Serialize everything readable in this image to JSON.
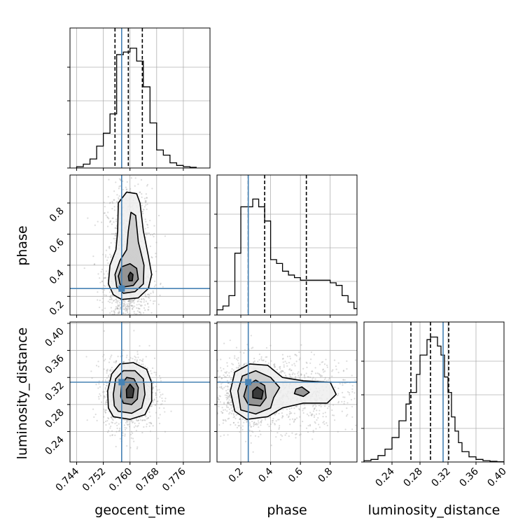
{
  "chart_data": {
    "type": "corner",
    "parameters": [
      "geocent_time",
      "phase",
      "luminosity_distance"
    ],
    "truths": {
      "geocent_time": 0.7575,
      "phase": 0.25,
      "luminosity_distance": 0.313
    },
    "truth_color": "#4682b4",
    "grid": true,
    "histograms": [
      {
        "parameter": "geocent_time",
        "range": [
          0.742,
          0.784
        ],
        "bins": [
          0.744,
          0.746,
          0.748,
          0.75,
          0.752,
          0.754,
          0.756,
          0.758,
          0.76,
          0.762,
          0.764,
          0.766,
          0.768,
          0.77,
          0.772,
          0.774,
          0.776,
          0.778,
          0.78
        ],
        "counts": [
          0.01,
          0.03,
          0.07,
          0.17,
          0.27,
          0.42,
          0.88,
          0.9,
          0.93,
          0.83,
          0.63,
          0.35,
          0.14,
          0.1,
          0.04,
          0.02,
          0.01,
          0.005
        ],
        "quantiles": [
          0.7555,
          0.7595,
          0.7637
        ]
      },
      {
        "parameter": "phase",
        "range": [
          0.04,
          0.98
        ],
        "bins": [
          0.04,
          0.08,
          0.12,
          0.16,
          0.2,
          0.24,
          0.28,
          0.32,
          0.36,
          0.4,
          0.44,
          0.48,
          0.52,
          0.56,
          0.6,
          0.64,
          0.68,
          0.72,
          0.76,
          0.8,
          0.84,
          0.88,
          0.92,
          0.96,
          0.98
        ],
        "counts": [
          0.04,
          0.07,
          0.15,
          0.48,
          0.84,
          0.84,
          0.9,
          0.84,
          0.73,
          0.43,
          0.4,
          0.34,
          0.31,
          0.29,
          0.27,
          0.27,
          0.27,
          0.27,
          0.27,
          0.25,
          0.23,
          0.15,
          0.1,
          0.05
        ],
        "quantiles": [
          0.25,
          0.36,
          0.64
        ]
      },
      {
        "parameter": "luminosity_distance",
        "range": [
          0.2,
          0.4
        ],
        "bins": [
          0.2,
          0.21,
          0.22,
          0.23,
          0.24,
          0.25,
          0.26,
          0.265,
          0.27,
          0.275,
          0.28,
          0.285,
          0.29,
          0.295,
          0.3,
          0.305,
          0.31,
          0.315,
          0.32,
          0.325,
          0.33,
          0.335,
          0.34,
          0.35,
          0.36,
          0.37,
          0.38,
          0.39,
          0.4
        ],
        "counts": [
          0.01,
          0.02,
          0.05,
          0.1,
          0.19,
          0.32,
          0.45,
          0.54,
          0.54,
          0.68,
          0.83,
          0.83,
          0.95,
          0.97,
          0.97,
          0.9,
          0.83,
          0.66,
          0.54,
          0.35,
          0.24,
          0.15,
          0.08,
          0.04,
          0.02,
          0.01,
          0.005,
          0.002
        ],
        "quantiles": [
          0.267,
          0.295,
          0.321
        ]
      }
    ],
    "contours": [
      {
        "x": "geocent_time",
        "y": "phase",
        "xlim": [
          0.742,
          0.784
        ],
        "ylim": [
          0.08,
          0.98
        ],
        "center": [
          0.7595,
          0.33
        ],
        "levels": [
          [
            [
              0.7575,
              0.18
            ],
            [
              0.7625,
              0.19
            ],
            [
              0.7655,
              0.25
            ],
            [
              0.7665,
              0.34
            ],
            [
              0.7655,
              0.46
            ],
            [
              0.764,
              0.62
            ],
            [
              0.763,
              0.8
            ],
            [
              0.762,
              0.86
            ],
            [
              0.759,
              0.87
            ],
            [
              0.7565,
              0.8
            ],
            [
              0.7563,
              0.62
            ],
            [
              0.7558,
              0.5
            ],
            [
              0.754,
              0.4
            ],
            [
              0.7535,
              0.28
            ],
            [
              0.755,
              0.21
            ]
          ],
          [
            [
              0.758,
              0.22
            ],
            [
              0.7615,
              0.23
            ],
            [
              0.764,
              0.28
            ],
            [
              0.7642,
              0.4
            ],
            [
              0.7625,
              0.55
            ],
            [
              0.7617,
              0.72
            ],
            [
              0.7603,
              0.74
            ],
            [
              0.7595,
              0.62
            ],
            [
              0.759,
              0.5
            ],
            [
              0.757,
              0.43
            ],
            [
              0.7555,
              0.34
            ],
            [
              0.756,
              0.26
            ]
          ],
          [
            [
              0.758,
              0.26
            ],
            [
              0.761,
              0.27
            ],
            [
              0.7625,
              0.31
            ],
            [
              0.762,
              0.38
            ],
            [
              0.76,
              0.41
            ],
            [
              0.7575,
              0.39
            ],
            [
              0.7565,
              0.33
            ],
            [
              0.757,
              0.28
            ]
          ],
          [
            [
              0.7597,
              0.3
            ],
            [
              0.7607,
              0.3
            ],
            [
              0.7609,
              0.34
            ],
            [
              0.7601,
              0.355
            ],
            [
              0.7595,
              0.33
            ]
          ]
        ],
        "points": 1400,
        "spread": [
          0.0035,
          0.17
        ]
      },
      {
        "x": "geocent_time",
        "y": "luminosity_distance",
        "xlim": [
          0.742,
          0.784
        ],
        "ylim": [
          0.195,
          0.402
        ],
        "center": [
          0.7598,
          0.296
        ],
        "levels": [
          [
            [
              0.755,
              0.262
            ],
            [
              0.76,
              0.258
            ],
            [
              0.7645,
              0.265
            ],
            [
              0.7665,
              0.285
            ],
            [
              0.7665,
              0.312
            ],
            [
              0.765,
              0.332
            ],
            [
              0.761,
              0.342
            ],
            [
              0.757,
              0.34
            ],
            [
              0.7545,
              0.325
            ],
            [
              0.7533,
              0.3
            ],
            [
              0.7535,
              0.275
            ]
          ],
          [
            [
              0.7565,
              0.27
            ],
            [
              0.7605,
              0.267
            ],
            [
              0.7635,
              0.275
            ],
            [
              0.7645,
              0.295
            ],
            [
              0.764,
              0.318
            ],
            [
              0.7615,
              0.33
            ],
            [
              0.758,
              0.33
            ],
            [
              0.7557,
              0.318
            ],
            [
              0.755,
              0.295
            ],
            [
              0.7553,
              0.278
            ]
          ],
          [
            [
              0.758,
              0.282
            ],
            [
              0.7605,
              0.28
            ],
            [
              0.7622,
              0.288
            ],
            [
              0.7625,
              0.305
            ],
            [
              0.7612,
              0.318
            ],
            [
              0.759,
              0.32
            ],
            [
              0.7575,
              0.31
            ],
            [
              0.7572,
              0.292
            ]
          ],
          [
            [
              0.759,
              0.29
            ],
            [
              0.7608,
              0.29
            ],
            [
              0.7612,
              0.303
            ],
            [
              0.76,
              0.31
            ],
            [
              0.7589,
              0.302
            ]
          ]
        ],
        "points": 1400,
        "spread": [
          0.0038,
          0.026
        ]
      },
      {
        "x": "phase",
        "y": "luminosity_distance",
        "xlim": [
          0.04,
          0.98
        ],
        "ylim": [
          0.195,
          0.402
        ],
        "center": [
          0.34,
          0.296
        ],
        "levels": [
          [
            [
              0.16,
              0.27
            ],
            [
              0.24,
              0.258
            ],
            [
              0.38,
              0.262
            ],
            [
              0.48,
              0.275
            ],
            [
              0.62,
              0.282
            ],
            [
              0.78,
              0.282
            ],
            [
              0.84,
              0.295
            ],
            [
              0.8,
              0.313
            ],
            [
              0.62,
              0.315
            ],
            [
              0.48,
              0.32
            ],
            [
              0.38,
              0.338
            ],
            [
              0.26,
              0.34
            ],
            [
              0.16,
              0.328
            ],
            [
              0.13,
              0.3
            ]
          ],
          [
            [
              0.2,
              0.272
            ],
            [
              0.3,
              0.266
            ],
            [
              0.4,
              0.275
            ],
            [
              0.42,
              0.29
            ],
            [
              0.46,
              0.305
            ],
            [
              0.4,
              0.32
            ],
            [
              0.3,
              0.33
            ],
            [
              0.21,
              0.322
            ],
            [
              0.18,
              0.3
            ]
          ],
          [
            [
              0.25,
              0.28
            ],
            [
              0.33,
              0.278
            ],
            [
              0.37,
              0.29
            ],
            [
              0.36,
              0.308
            ],
            [
              0.3,
              0.316
            ],
            [
              0.24,
              0.308
            ],
            [
              0.22,
              0.292
            ]
          ],
          [
            [
              0.28,
              0.29
            ],
            [
              0.34,
              0.288
            ],
            [
              0.35,
              0.3
            ],
            [
              0.31,
              0.306
            ],
            [
              0.28,
              0.3
            ]
          ],
          [
            [
              0.56,
              0.296
            ],
            [
              0.62,
              0.292
            ],
            [
              0.66,
              0.298
            ],
            [
              0.61,
              0.306
            ],
            [
              0.57,
              0.303
            ]
          ]
        ],
        "points": 1600,
        "spread": [
          0.17,
          0.026
        ]
      }
    ],
    "tick_labels": {
      "geocent_time": [
        "0.744",
        "0.752",
        "0.760",
        "0.768",
        "0.776"
      ],
      "phase": [
        "0.2",
        "0.4",
        "0.6",
        "0.8"
      ],
      "luminosity_distance": [
        "0.24",
        "0.28",
        "0.32",
        "0.36",
        "0.40"
      ]
    }
  }
}
